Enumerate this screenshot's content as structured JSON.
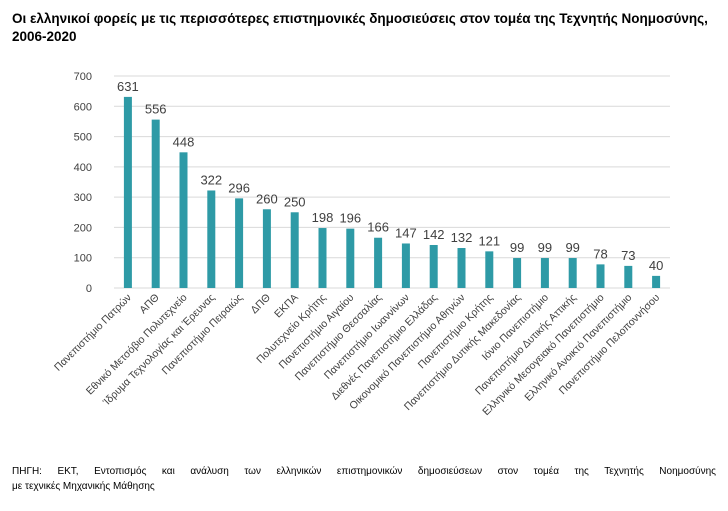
{
  "title": "Οι ελληνικοί φορείς με τις περισσότερες επιστημονικές δημοσιεύσεις στον τομέα της Τεχνητής Νοημοσύνης, 2006-2020",
  "source_line1": "ΠΗΓΗ: ΕΚΤ, Εντοπισμός και ανάλυση των ελληνικών επιστημονικών δημοσιεύσεων στον τομέα της Τεχνητής Νοημοσύνης",
  "source_line2": "με τεχνικές Μηχανικής Μάθησης",
  "colors": {
    "bar": "#2e9aa6",
    "grid": "#d9d9d9",
    "text": "#404040"
  },
  "chart_data": {
    "type": "bar",
    "title": "Οι ελληνικοί φορείς με τις περισσότερες επιστημονικές δημοσιεύσεις στον τομέα της Τεχνητής Νοημοσύνης, 2006-2020",
    "xlabel": "",
    "ylabel": "",
    "ylim": [
      0,
      700
    ],
    "yticks": [
      0,
      100,
      200,
      300,
      400,
      500,
      600,
      700
    ],
    "grid": true,
    "legend": "none",
    "data_labels": true,
    "categories": [
      "Πανεπιστήμιο Πατρών",
      "ΑΠΘ",
      "Εθνικό Μετσόβιο Πολυτεχνείο",
      "Ίδρυμα Τεχνολογίας και Έρευνας",
      "Πανεπιστήμιο Πειραιώς",
      "ΔΠΘ",
      "ΕΚΠΑ",
      "Πολυτεχνείο Κρήτης",
      "Πανεπιστήμιο Αιγαίου",
      "Πανεπιστήμιο Θεσσαλίας",
      "Πανεπιστήμιο Ιωαννίνων",
      "Διεθνές Πανεπιστήμιο Ελλάδας",
      "Οικονομικό Πανεπιστήμιο Αθηνών",
      "Πανεπιστήμιο Κρήτης",
      "Πανεπιστήμιο Δυτικής Μακεδονίας",
      "Ιόνιο Πανεπιστήμιο",
      "Πανεπιστήμιο Δυτικής Αττικής",
      "Ελληνικό Μεσογειακό Πανεπιστήμιο",
      "Ελληνικό Ανοικτό Πανεπιστήμιο",
      "Πανεπιστήμιο Πελοποννήσου"
    ],
    "values": [
      631,
      556,
      448,
      322,
      296,
      260,
      250,
      198,
      196,
      166,
      147,
      142,
      132,
      121,
      99,
      99,
      99,
      78,
      73,
      40
    ]
  }
}
